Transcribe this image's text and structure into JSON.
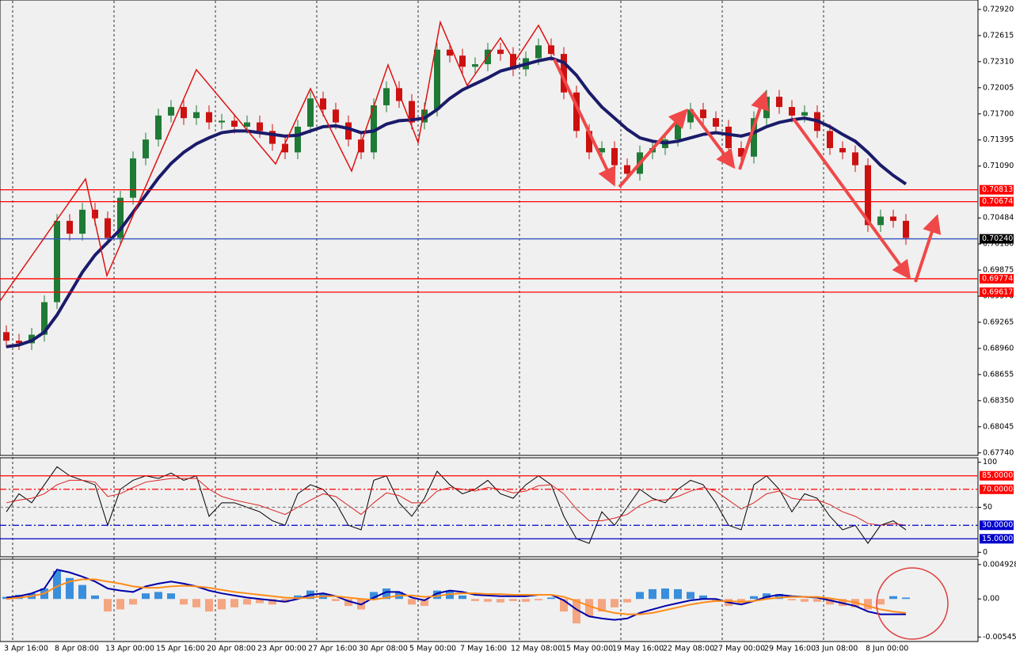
{
  "chart_data": [
    {
      "type": "candlestick",
      "categories": [
        "3 Apr 16:00",
        null,
        null,
        null,
        "8 Apr 08:00",
        null,
        null,
        null,
        "13 Apr 00:00",
        null,
        null,
        null,
        "15 Apr 16:00",
        null,
        null,
        null,
        "20 Apr 08:00",
        null,
        null,
        null,
        "23 Apr 00:00",
        null,
        null,
        null,
        "27 Apr 16:00",
        null,
        null,
        null,
        "30 Apr 08:00",
        null,
        null,
        null,
        "5 May 00:00",
        null,
        null,
        null,
        "7 May 16:00",
        null,
        null,
        null,
        "12 May 08:00",
        null,
        null,
        null,
        "15 May 00:00",
        null,
        null,
        null,
        "19 May 16:00",
        null,
        null,
        null,
        "22 May 08:00",
        null,
        null,
        null,
        "27 May 00:00",
        null,
        null,
        null,
        "29 May 16:00",
        null,
        null,
        null,
        "3 Jun 08:00",
        null,
        null,
        null,
        "8 Jun 00:00",
        null,
        null,
        null
      ],
      "open": [
        0.6915,
        0.6905,
        0.6902,
        0.6912,
        0.695,
        0.7045,
        0.703,
        0.7058,
        0.7048,
        0.7025,
        0.7072,
        0.7118,
        0.714,
        0.7168,
        0.7178,
        0.7165,
        0.7172,
        0.716,
        0.7162,
        0.7155,
        0.716,
        0.715,
        0.7135,
        0.7125,
        0.7155,
        0.7188,
        0.7175,
        0.716,
        0.714,
        0.7125,
        0.718,
        0.72,
        0.7185,
        0.716,
        0.7175,
        0.7245,
        0.7238,
        0.7225,
        0.7228,
        0.7245,
        0.724,
        0.7222,
        0.7235,
        0.725,
        0.724,
        0.7195,
        0.715,
        0.7125,
        0.713,
        0.711,
        0.71,
        0.7125,
        0.713,
        0.714,
        0.716,
        0.7175,
        0.7165,
        0.7155,
        0.713,
        0.712,
        0.7165,
        0.719,
        0.7178,
        0.7168,
        0.7172,
        0.715,
        0.713,
        0.7125,
        0.711,
        0.704,
        0.705,
        0.7045
      ],
      "high": [
        0.6923,
        0.6913,
        0.692,
        0.6958,
        0.7053,
        0.7053,
        0.7066,
        0.7066,
        0.7056,
        0.708,
        0.7126,
        0.7148,
        0.7176,
        0.7186,
        0.7186,
        0.718,
        0.718,
        0.717,
        0.717,
        0.7168,
        0.7168,
        0.7158,
        0.7143,
        0.7163,
        0.7196,
        0.7196,
        0.7183,
        0.7168,
        0.7148,
        0.7188,
        0.7208,
        0.7208,
        0.7193,
        0.7183,
        0.7253,
        0.7253,
        0.7246,
        0.7236,
        0.7253,
        0.7253,
        0.7248,
        0.7243,
        0.7258,
        0.7258,
        0.7248,
        0.7203,
        0.7158,
        0.7138,
        0.7138,
        0.7118,
        0.7133,
        0.7138,
        0.7148,
        0.7168,
        0.7183,
        0.7183,
        0.7173,
        0.7163,
        0.7138,
        0.7173,
        0.7198,
        0.7198,
        0.7186,
        0.718,
        0.718,
        0.7158,
        0.7138,
        0.7133,
        0.7118,
        0.7058,
        0.7058,
        0.7053
      ],
      "low": [
        0.6897,
        0.6894,
        0.6894,
        0.6904,
        0.6942,
        0.7022,
        0.7022,
        0.704,
        0.7017,
        0.7017,
        0.7064,
        0.711,
        0.7132,
        0.716,
        0.7157,
        0.7157,
        0.7152,
        0.7152,
        0.7147,
        0.7147,
        0.7142,
        0.7127,
        0.7117,
        0.7117,
        0.7147,
        0.7167,
        0.7152,
        0.7132,
        0.7117,
        0.7117,
        0.7172,
        0.7177,
        0.7152,
        0.7152,
        0.7167,
        0.723,
        0.7217,
        0.7217,
        0.722,
        0.7232,
        0.7214,
        0.7214,
        0.7227,
        0.7232,
        0.7187,
        0.7142,
        0.7117,
        0.7117,
        0.7102,
        0.7092,
        0.7092,
        0.7117,
        0.7122,
        0.7132,
        0.7152,
        0.7157,
        0.7147,
        0.7122,
        0.7112,
        0.7112,
        0.7157,
        0.717,
        0.716,
        0.716,
        0.7142,
        0.7122,
        0.7117,
        0.7102,
        0.7032,
        0.7032,
        0.7037,
        0.7017
      ],
      "close": [
        0.6905,
        0.6902,
        0.6912,
        0.695,
        0.7045,
        0.703,
        0.7058,
        0.7048,
        0.7025,
        0.7072,
        0.7118,
        0.714,
        0.7168,
        0.7178,
        0.7165,
        0.7172,
        0.716,
        0.7162,
        0.7155,
        0.716,
        0.715,
        0.7135,
        0.7125,
        0.7155,
        0.7188,
        0.7175,
        0.716,
        0.714,
        0.7125,
        0.718,
        0.72,
        0.7185,
        0.716,
        0.7175,
        0.7245,
        0.7238,
        0.7225,
        0.7228,
        0.7245,
        0.724,
        0.7222,
        0.7235,
        0.725,
        0.724,
        0.7195,
        0.715,
        0.7125,
        0.713,
        0.711,
        0.71,
        0.7125,
        0.713,
        0.714,
        0.716,
        0.7175,
        0.7165,
        0.7155,
        0.713,
        0.712,
        0.7165,
        0.719,
        0.7178,
        0.7168,
        0.7172,
        0.715,
        0.713,
        0.7125,
        0.711,
        0.704,
        0.705,
        0.7045,
        0.7025
      ],
      "up_color": "#1f7a35",
      "down_color": "#cc1111",
      "lines": [
        {
          "color": "#1b1b6b",
          "values": [
            0.6898,
            0.69,
            0.6905,
            0.6915,
            0.6935,
            0.696,
            0.6985,
            0.7005,
            0.702,
            0.7035,
            0.7055,
            0.7075,
            0.7095,
            0.7112,
            0.7125,
            0.7135,
            0.7142,
            0.7148,
            0.715,
            0.715,
            0.7148,
            0.7146,
            0.7144,
            0.7145,
            0.715,
            0.7155,
            0.7156,
            0.7153,
            0.7148,
            0.715,
            0.7158,
            0.7162,
            0.7163,
            0.7165,
            0.7175,
            0.7188,
            0.7198,
            0.7205,
            0.7212,
            0.722,
            0.7224,
            0.7228,
            0.7232,
            0.7235,
            0.723,
            0.7215,
            0.7195,
            0.7178,
            0.7165,
            0.7152,
            0.7142,
            0.7138,
            0.7136,
            0.7138,
            0.7142,
            0.7146,
            0.7148,
            0.7146,
            0.7144,
            0.7148,
            0.7155,
            0.716,
            0.7163,
            0.7165,
            0.7162,
            0.7155,
            0.7146,
            0.7138,
            0.7125,
            0.711,
            0.7098,
            0.7088
          ]
        }
      ],
      "ylim": [
        0.6771,
        0.7303
      ],
      "yticks": [
        {
          "value": 0.7292,
          "label": "0.72920"
        },
        0.72615,
        {
          "value": 0.7231,
          "label": "0.72310"
        },
        0.72005,
        {
          "value": 0.717,
          "label": "0.71700"
        },
        0.71395,
        {
          "value": 0.7109,
          "label": "0.71090"
        },
        0.70484,
        {
          "value": 0.7018,
          "label": "0.70180"
        },
        0.69875,
        {
          "value": 0.6957,
          "label": "0.69570"
        },
        0.69265,
        {
          "value": 0.6896,
          "label": "0.68960"
        },
        0.68655,
        {
          "value": 0.6835,
          "label": "0.68350"
        },
        0.68045,
        {
          "value": 0.6774,
          "label": "0.67740"
        }
      ],
      "levels": [
        {
          "value": 0.70813,
          "label": "0.70813",
          "color": "#ff0000",
          "dash": "solid"
        },
        {
          "value": 0.70674,
          "label": "0.70674",
          "color": "#ff0000",
          "dash": "solid"
        },
        {
          "value": 0.7024,
          "label": "0.70240",
          "color": "#3050c0",
          "badge": "#000000",
          "dash": "solid"
        },
        {
          "value": 0.69774,
          "label": "0.69774",
          "color": "#ff0000",
          "dash": "solid"
        },
        {
          "value": 0.69617,
          "label": "0.69617",
          "color": "#ff0000",
          "dash": "solid"
        }
      ]
    },
    {
      "type": "line",
      "series": [
        {
          "color": "#000000",
          "values": [
            45,
            65,
            55,
            75,
            95,
            85,
            80,
            75,
            30,
            70,
            80,
            85,
            82,
            88,
            80,
            85,
            40,
            55,
            55,
            50,
            45,
            35,
            30,
            65,
            75,
            70,
            55,
            30,
            25,
            80,
            85,
            55,
            40,
            60,
            90,
            75,
            65,
            70,
            80,
            65,
            60,
            75,
            85,
            75,
            40,
            15,
            10,
            45,
            30,
            50,
            70,
            60,
            55,
            70,
            80,
            75,
            55,
            30,
            25,
            75,
            85,
            70,
            45,
            65,
            60,
            40,
            25,
            30,
            10,
            30,
            35,
            25
          ]
        },
        {
          "color": "#dd2222",
          "values": [
            55,
            58,
            60,
            65,
            75,
            80,
            80,
            78,
            62,
            65,
            72,
            78,
            80,
            82,
            82,
            82,
            70,
            62,
            58,
            55,
            52,
            47,
            42,
            50,
            58,
            65,
            62,
            52,
            42,
            55,
            66,
            63,
            55,
            55,
            68,
            72,
            70,
            68,
            72,
            70,
            66,
            68,
            74,
            75,
            65,
            48,
            35,
            35,
            38,
            42,
            52,
            58,
            58,
            62,
            68,
            72,
            68,
            58,
            48,
            55,
            65,
            68,
            60,
            58,
            58,
            53,
            45,
            40,
            32,
            30,
            32,
            30
          ]
        }
      ],
      "ylim": [
        -5,
        105
      ],
      "yticks": [
        100,
        50,
        0
      ],
      "levels": [
        {
          "value": 85,
          "label": "85.0000",
          "color": "#ff0000",
          "dash": "solid"
        },
        {
          "value": 70,
          "label": "70.0000",
          "color": "#ff0000",
          "dash": "dashdot"
        },
        {
          "value": 50,
          "color": "#888888",
          "dash": "dashed"
        },
        {
          "value": 30,
          "label": "30.0000",
          "color": "#0000cc",
          "dash": "dashdot"
        },
        {
          "value": 15,
          "label": "15.0000",
          "color": "#0000cc",
          "dash": "solid"
        }
      ]
    },
    {
      "type": "bar",
      "values": [
        0.0003,
        0.0006,
        0.0008,
        0.0015,
        0.004,
        0.003,
        0.002,
        0.0005,
        -0.0018,
        -0.0015,
        -0.0008,
        0.0008,
        0.001,
        0.0008,
        -0.0008,
        -0.0012,
        -0.0018,
        -0.0015,
        -0.0012,
        -0.0008,
        -0.0006,
        -0.0008,
        -0.0005,
        0.0005,
        0.0012,
        0.0008,
        -0.0003,
        -0.001,
        -0.0015,
        0.001,
        0.0015,
        0.001,
        -0.0008,
        -0.001,
        0.0012,
        0.0012,
        0.0005,
        -0.0003,
        -0.0004,
        -0.0005,
        -0.0003,
        -0.0004,
        -0.0002,
        0.0002,
        -0.0018,
        -0.0035,
        -0.0025,
        -0.0018,
        -0.0012,
        -0.0005,
        0.001,
        0.0014,
        0.0015,
        0.0014,
        0.001,
        0.0005,
        -0.0004,
        -0.001,
        -0.0008,
        0.0004,
        0.0008,
        0.0007,
        -0.0002,
        -0.0004,
        -0.0004,
        -0.0008,
        -0.001,
        -0.0012,
        -0.0015,
        -0.0008,
        0.0004,
        0.0002
      ],
      "up_color": "#3a8fdc",
      "down_color": "#f4a582",
      "lines": [
        {
          "color": "#0000aa",
          "values": [
            0.0002,
            0.0004,
            0.0008,
            0.0015,
            0.0042,
            0.0038,
            0.0032,
            0.0025,
            0.0015,
            0.0012,
            0.001,
            0.0018,
            0.0022,
            0.0025,
            0.0022,
            0.0018,
            0.0012,
            0.0008,
            0.0005,
            0.0002,
            0,
            -0.0002,
            -0.0004,
            0,
            0.0006,
            0.0008,
            0.0004,
            -0.0003,
            -0.0008,
            0.0002,
            0.001,
            0.001,
            0.0002,
            -0.0002,
            0.0008,
            0.0012,
            0.001,
            0.0006,
            0.0005,
            0.0004,
            0.0004,
            0.0004,
            0.0006,
            0.0006,
            -0.0002,
            -0.0015,
            -0.0025,
            -0.0028,
            -0.003,
            -0.0028,
            -0.002,
            -0.0015,
            -0.001,
            -0.0006,
            -0.0002,
            0,
            0,
            -0.0005,
            -0.0008,
            -0.0003,
            0.0003,
            0.0006,
            0.0004,
            0.0003,
            0.0002,
            -0.0002,
            -0.0006,
            -0.001,
            -0.0018,
            -0.0022,
            -0.0022,
            -0.0022
          ]
        },
        {
          "color": "#ff8c1a",
          "values": [
            0,
            0.0002,
            0.0004,
            0.0008,
            0.0018,
            0.0025,
            0.0028,
            0.0028,
            0.0025,
            0.0022,
            0.0018,
            0.0016,
            0.0016,
            0.0018,
            0.0019,
            0.0018,
            0.0016,
            0.0013,
            0.001,
            0.0008,
            0.0006,
            0.0004,
            0.0002,
            0.0001,
            0.0002,
            0.0004,
            0.0004,
            0.0002,
            0,
            -0.0001,
            0.0002,
            0.0005,
            0.0005,
            0.0003,
            0.0004,
            0.0007,
            0.0008,
            0.0008,
            0.0007,
            0.0007,
            0.0006,
            0.0006,
            0.0006,
            0.0006,
            0.0003,
            -0.0003,
            -0.001,
            -0.0016,
            -0.002,
            -0.0022,
            -0.0022,
            -0.002,
            -0.0016,
            -0.0012,
            -0.0008,
            -0.0005,
            -0.0003,
            -0.0003,
            -0.0004,
            -0.0003,
            0,
            0.0002,
            0.0003,
            0.0003,
            0.0003,
            0.0001,
            -0.0002,
            -0.0005,
            -0.001,
            -0.0015,
            -0.0018,
            -0.002
          ]
        }
      ],
      "ylim": [
        -0.0061,
        0.0057
      ],
      "yticks": [
        0.0049282,
        {
          "value": 0,
          "label": "0.00"
        },
        -0.005454
      ]
    }
  ]
}
